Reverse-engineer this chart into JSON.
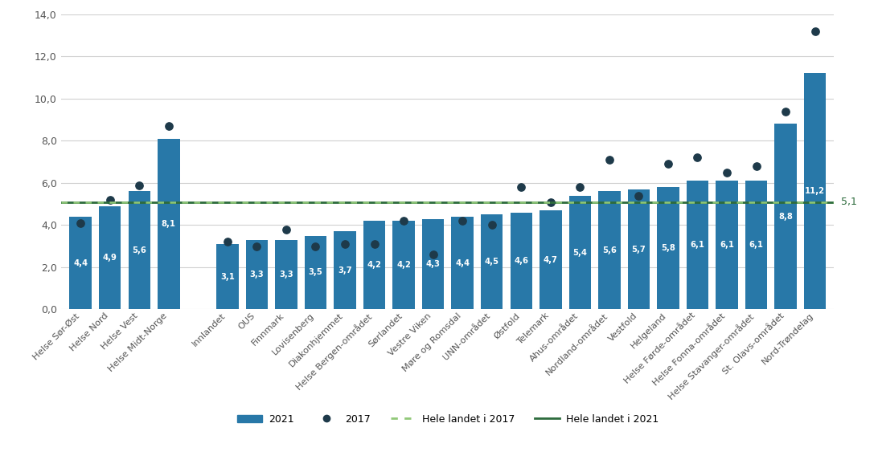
{
  "categories": [
    "Helse Sør-Øst",
    "Helse Nord",
    "Helse Vest",
    "Helse Midt-Norge",
    "",
    "Innlandet",
    "OUS",
    "Finnmark",
    "Lovisenberg",
    "Diakonhjemmet",
    "Helse Bergen-området",
    "Sørlandet",
    "Vestre Viken",
    "Møre og Romsdal",
    "UNN-området",
    "Østfold",
    "Telemark",
    "Ahus-området",
    "Nordland-området",
    "Vestfold",
    "Helgeland",
    "Helse Førde-området",
    "Helse Fonna-området",
    "Helse Stavanger-området",
    "St. Olavs-området",
    "Nord-Trøndelag"
  ],
  "values_2021": [
    4.4,
    4.9,
    5.6,
    8.1,
    null,
    3.1,
    3.3,
    3.3,
    3.5,
    3.7,
    4.2,
    4.2,
    4.3,
    4.4,
    4.5,
    4.6,
    4.7,
    5.4,
    5.6,
    5.7,
    5.8,
    6.1,
    6.1,
    6.1,
    8.8,
    11.2
  ],
  "values_2017": [
    4.1,
    5.2,
    5.9,
    8.7,
    null,
    3.2,
    3.0,
    3.8,
    3.0,
    3.1,
    3.1,
    4.2,
    2.6,
    4.2,
    4.0,
    5.8,
    5.1,
    5.8,
    7.1,
    5.4,
    6.9,
    7.2,
    6.5,
    6.8,
    9.4,
    13.2
  ],
  "bar_color": "#2878a8",
  "dot_color": "#1e3a4a",
  "hline_2021_value": 5.1,
  "hline_2021_color": "#2d6b3c",
  "hline_2021_label": "Hele landet i 2021",
  "hline_2017_value": 5.1,
  "hline_2017_color": "#90c878",
  "hline_2017_label": "Hele landet i 2017",
  "legend_2021_label": "2021",
  "legend_2017_label": "2017",
  "ylim": [
    0,
    14.0
  ],
  "yticks": [
    0.0,
    2.0,
    4.0,
    6.0,
    8.0,
    10.0,
    12.0,
    14.0
  ],
  "background_color": "#ffffff",
  "grid_color": "#d0d0d0",
  "hline_label_value": "5,1"
}
